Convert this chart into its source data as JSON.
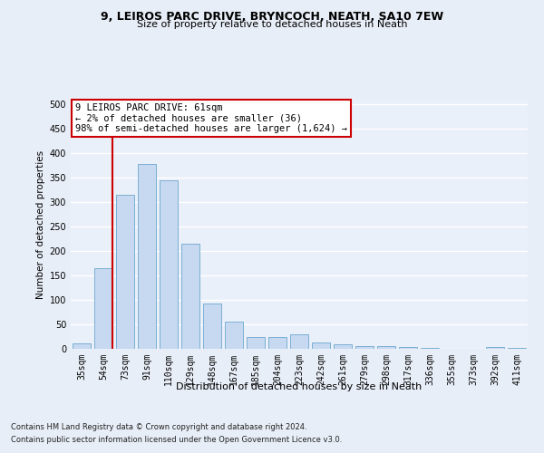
{
  "title1": "9, LEIROS PARC DRIVE, BRYNCOCH, NEATH, SA10 7EW",
  "title2": "Size of property relative to detached houses in Neath",
  "xlabel": "Distribution of detached houses by size in Neath",
  "ylabel": "Number of detached properties",
  "categories": [
    "35sqm",
    "54sqm",
    "73sqm",
    "91sqm",
    "110sqm",
    "129sqm",
    "148sqm",
    "167sqm",
    "185sqm",
    "204sqm",
    "223sqm",
    "242sqm",
    "261sqm",
    "279sqm",
    "298sqm",
    "317sqm",
    "336sqm",
    "355sqm",
    "373sqm",
    "392sqm",
    "411sqm"
  ],
  "values": [
    11,
    165,
    315,
    378,
    345,
    215,
    93,
    55,
    24,
    25,
    29,
    13,
    10,
    6,
    5,
    4,
    1,
    0,
    0,
    4,
    2
  ],
  "bar_color": "#c6d9f0",
  "bar_edge_color": "#7bafd4",
  "vline_x_index": 1,
  "vline_color": "#cc0000",
  "annotation_text": "9 LEIROS PARC DRIVE: 61sqm\n← 2% of detached houses are smaller (36)\n98% of semi-detached houses are larger (1,624) →",
  "annotation_box_color": "#ffffff",
  "annotation_box_edge": "#cc0000",
  "ylim": [
    0,
    510
  ],
  "yticks": [
    0,
    50,
    100,
    150,
    200,
    250,
    300,
    350,
    400,
    450,
    500
  ],
  "footer1": "Contains HM Land Registry data © Crown copyright and database right 2024.",
  "footer2": "Contains public sector information licensed under the Open Government Licence v3.0.",
  "bg_color": "#e8eef7",
  "plot_bg_color": "#eaf0f9",
  "title1_fontsize": 9,
  "title2_fontsize": 8,
  "xlabel_fontsize": 8,
  "ylabel_fontsize": 7.5,
  "tick_fontsize": 7,
  "footer_fontsize": 6,
  "ann_fontsize": 7.5
}
